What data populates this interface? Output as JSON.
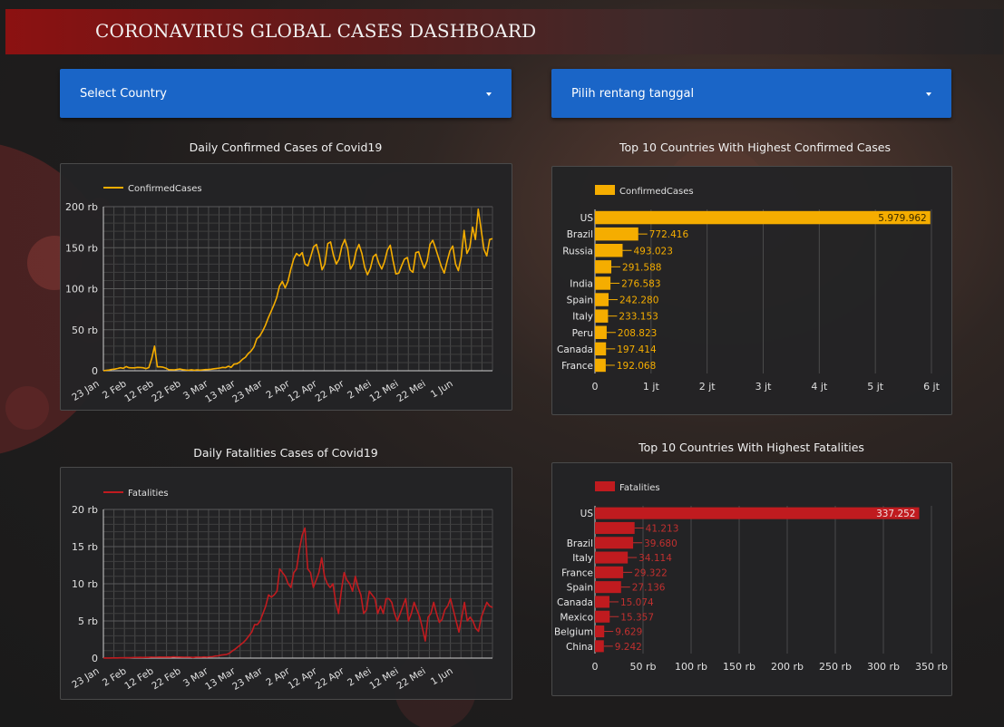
{
  "header": {
    "title": "CORONAVIRUS GLOBAL CASES DASHBOARD"
  },
  "filters": {
    "country": {
      "label": "Select Country"
    },
    "date_range": {
      "label": "Pilih rentang tanggal"
    }
  },
  "colors": {
    "confirmed": "#f5ad00",
    "fatalities": "#c01b1f",
    "dropdown": "#1a65c7",
    "header_start": "#8c1111"
  },
  "charts": {
    "daily_confirmed": {
      "title": "Daily Confirmed Cases of Covid19"
    },
    "daily_fatalities": {
      "title": "Daily Fatalities Cases of Covid19"
    },
    "top_confirmed": {
      "title": "Top 10 Countries With Highest Confirmed Cases"
    },
    "top_fatalities": {
      "title": "Top 10 Countries With Highest Fatalities"
    }
  },
  "chart_data": [
    {
      "type": "line",
      "title": "Daily Confirmed Cases of Covid19",
      "legend": "top-left",
      "grid": true,
      "series": [
        {
          "name": "ConfirmedCases",
          "values": [
            100,
            600,
            900,
            1700,
            2000,
            2800,
            3600,
            3000,
            5100,
            3700,
            3500,
            3500,
            4100,
            4000,
            3600,
            2600,
            3900,
            14500,
            30000,
            4800,
            4700,
            4300,
            3200,
            1300,
            1200,
            1100,
            1700,
            2100,
            1300,
            900,
            700,
            1200,
            700,
            1100,
            800,
            1100,
            1400,
            1500,
            1900,
            2400,
            2900,
            3300,
            4100,
            3800,
            5500,
            4200,
            8100,
            8500,
            10600,
            14000,
            16500,
            21000,
            24000,
            29000,
            39000,
            42000,
            48000,
            55000,
            64000,
            72000,
            80000,
            89000,
            103000,
            109000,
            101000,
            109000,
            124000,
            136000,
            143000,
            140000,
            144000,
            130000,
            128000,
            139000,
            151000,
            154000,
            141000,
            123000,
            130000,
            155000,
            157000,
            141000,
            130000,
            136000,
            152000,
            160000,
            149000,
            124000,
            130000,
            146000,
            154000,
            143000,
            126000,
            117000,
            125000,
            139000,
            142000,
            131000,
            124000,
            133000,
            147000,
            153000,
            134000,
            118000,
            119000,
            128000,
            136000,
            138000,
            123000,
            120000,
            144000,
            145000,
            134000,
            125000,
            134000,
            154000,
            159000,
            149000,
            138000,
            127000,
            119000,
            133000,
            146000,
            152000,
            130000,
            122000,
            139000,
            171000,
            143000,
            150000,
            175000,
            160000,
            197000,
            172000,
            148000,
            140000,
            160000,
            161000
          ]
        }
      ],
      "x_ticks": [
        "23 Jan",
        "2 Feb",
        "12 Feb",
        "22 Feb",
        "3 Mar",
        "13 Mar",
        "23 Mar",
        "2 Apr",
        "12 Apr",
        "22 Apr",
        "2 Mei",
        "12 Mei",
        "22 Mei",
        "1 Jun"
      ],
      "y_ticks": [
        "0",
        "50 rb",
        "100 rb",
        "150 rb",
        "200 rb"
      ],
      "ylim": [
        0,
        200000
      ]
    },
    {
      "type": "line",
      "title": "Daily Fatalities Cases of Covid19",
      "legend": "top-left",
      "grid": true,
      "series": [
        {
          "name": "Fatalities",
          "values": [
            20,
            10,
            15,
            20,
            30,
            30,
            40,
            40,
            50,
            50,
            60,
            80,
            90,
            100,
            90,
            100,
            100,
            130,
            120,
            120,
            150,
            140,
            140,
            150,
            140,
            170,
            150,
            150,
            140,
            120,
            130,
            120,
            80,
            140,
            130,
            120,
            160,
            120,
            180,
            200,
            280,
            300,
            400,
            450,
            500,
            650,
            950,
            1200,
            1500,
            1800,
            2100,
            2500,
            3000,
            3500,
            4500,
            4500,
            5000,
            6000,
            7000,
            8500,
            8200,
            8500,
            9000,
            12000,
            11500,
            11000,
            10000,
            9500,
            11500,
            12000,
            14500,
            16500,
            17500,
            12000,
            11500,
            9500,
            10500,
            11500,
            13500,
            11000,
            10000,
            9500,
            10000,
            7500,
            6000,
            9000,
            11500,
            10500,
            10000,
            9000,
            11000,
            9500,
            8500,
            6000,
            6500,
            9000,
            8500,
            8000,
            6000,
            7000,
            6000,
            8000,
            8000,
            7500,
            6000,
            5000,
            6000,
            7000,
            8000,
            5000,
            6000,
            7500,
            6500,
            5500,
            4000,
            2300,
            5500,
            6000,
            7500,
            6000,
            4800,
            5200,
            6500,
            7000,
            8000,
            6500,
            5000,
            3500,
            5500,
            7500,
            5000,
            5500,
            5000,
            4000,
            3600,
            5500,
            6500,
            7500,
            7000,
            6800
          ]
        }
      ],
      "x_ticks": [
        "23 Jan",
        "2 Feb",
        "12 Feb",
        "22 Feb",
        "3 Mar",
        "13 Mar",
        "23 Mar",
        "2 Apr",
        "12 Apr",
        "22 Apr",
        "2 Mei",
        "12 Mei",
        "22 Mei",
        "1 Jun"
      ],
      "y_ticks": [
        "0",
        "5 rb",
        "10 rb",
        "15 rb",
        "20 rb"
      ],
      "ylim": [
        0,
        20000
      ]
    },
    {
      "type": "bar",
      "orientation": "horizontal",
      "title": "Top 10 Countries With Highest Confirmed Cases",
      "legend": "top-left",
      "series_name": "ConfirmedCases",
      "categories": [
        "US",
        "Brazil",
        "Russia",
        "",
        "India",
        "Spain",
        "Italy",
        "Peru",
        "Canada",
        "France"
      ],
      "values": [
        5979962,
        772416,
        493023,
        291588,
        276583,
        242280,
        233153,
        208823,
        197414,
        192068
      ],
      "labels": [
        "5.979.962",
        "772.416",
        "493.023",
        "291.588",
        "276.583",
        "242.280",
        "233.153",
        "208.823",
        "197.414",
        "192.068"
      ],
      "x_ticks": [
        "0",
        "1 jt",
        "2 jt",
        "3 jt",
        "4 jt",
        "5 jt",
        "6 jt"
      ],
      "xlim": [
        0,
        6000000
      ]
    },
    {
      "type": "bar",
      "orientation": "horizontal",
      "title": "Top 10 Countries With Highest Fatalities",
      "legend": "top-left",
      "series_name": "Fatalities",
      "categories": [
        "US",
        "",
        "Brazil",
        "Italy",
        "France",
        "Spain",
        "Canada",
        "Mexico",
        "Belgium",
        "China"
      ],
      "values": [
        337252,
        41213,
        39680,
        34114,
        29322,
        27136,
        15074,
        15357,
        9629,
        9242
      ],
      "labels": [
        "337.252",
        "41.213",
        "39.680",
        "34.114",
        "29.322",
        "27.136",
        "15.074",
        "15.357",
        "9.629",
        "9.242"
      ],
      "x_ticks": [
        "0",
        "50 rb",
        "100 rb",
        "150 rb",
        "200 rb",
        "250 rb",
        "300 rb",
        "350 rb"
      ],
      "xlim": [
        0,
        350000
      ]
    }
  ]
}
